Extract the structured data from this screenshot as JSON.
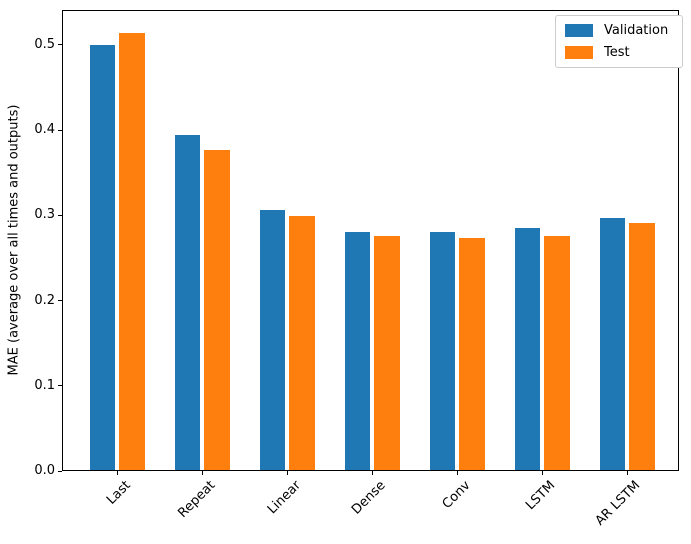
{
  "figure": {
    "background": "#ffffff",
    "spine_color": "#000000",
    "legend_border_color": "#cccccc"
  },
  "chart_data": {
    "type": "bar",
    "title": "",
    "xlabel": "",
    "ylabel": "MAE (average over all times and outputs)",
    "categories": [
      "Last",
      "Repeat",
      "Linear",
      "Dense",
      "Conv",
      "LSTM",
      "AR LSTM"
    ],
    "series": [
      {
        "name": "Validation",
        "color": "#1f77b4",
        "values": [
          0.501,
          0.395,
          0.306,
          0.28,
          0.28,
          0.285,
          0.297
        ]
      },
      {
        "name": "Test",
        "color": "#ff7f0e",
        "values": [
          0.515,
          0.377,
          0.299,
          0.276,
          0.273,
          0.276,
          0.291
        ]
      }
    ],
    "ylim": [
      0,
      0.541
    ],
    "yticks": [
      0.0,
      0.1,
      0.2,
      0.3,
      0.4,
      0.5
    ],
    "ytick_labels": [
      "0.0",
      "0.1",
      "0.2",
      "0.3",
      "0.4",
      "0.5"
    ],
    "xtick_rotation": 45,
    "grid": false,
    "legend_position": "upper right"
  }
}
